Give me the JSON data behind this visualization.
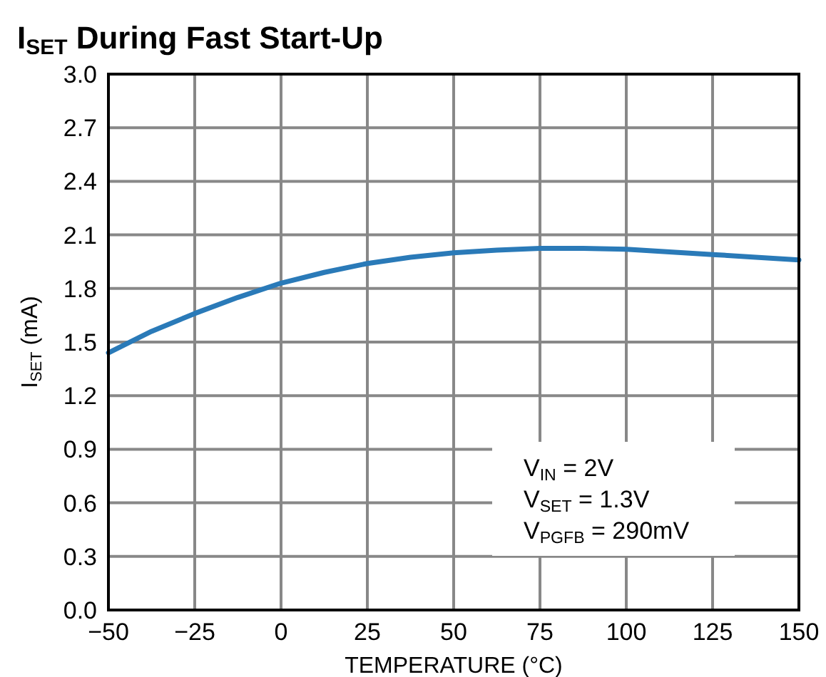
{
  "chart_data": {
    "type": "line",
    "title": "I$_{SET}$ During Fast Start-Up",
    "xlabel": "TEMPERATURE (°C)",
    "ylabel": "I$_{SET}$ (mA)",
    "x": [
      -50,
      -37.5,
      -25,
      -12.5,
      0,
      12.5,
      25,
      37.5,
      50,
      62.5,
      75,
      87.5,
      100,
      112.5,
      125,
      137.5,
      150
    ],
    "series": [
      {
        "color": "#2a7ab8",
        "values": [
          1.44,
          1.56,
          1.66,
          1.75,
          1.83,
          1.89,
          1.94,
          1.975,
          2.0,
          2.015,
          2.025,
          2.025,
          2.02,
          2.005,
          1.99,
          1.975,
          1.96
        ]
      }
    ],
    "xlim": [
      -50,
      150
    ],
    "xticks": [
      {
        "value": -50,
        "label": "−50"
      },
      {
        "value": -25,
        "label": "−25"
      },
      0,
      25,
      50,
      75,
      100,
      125,
      150
    ],
    "ylim": [
      0,
      3
    ],
    "yticks": [
      {
        "value": 0,
        "label": "0.0"
      },
      0.3,
      0.6,
      0.9,
      1.2,
      1.5,
      1.8,
      2.1,
      2.4,
      2.7,
      {
        "value": 3,
        "label": "3.0"
      }
    ],
    "grid": true,
    "line_style": "solid",
    "marker": "none",
    "annotations": [
      "V$_{IN}$ = 2V",
      "V$_{SET}$ = 1.3V",
      "V$_{PGFB}$ = 290mV"
    ]
  }
}
